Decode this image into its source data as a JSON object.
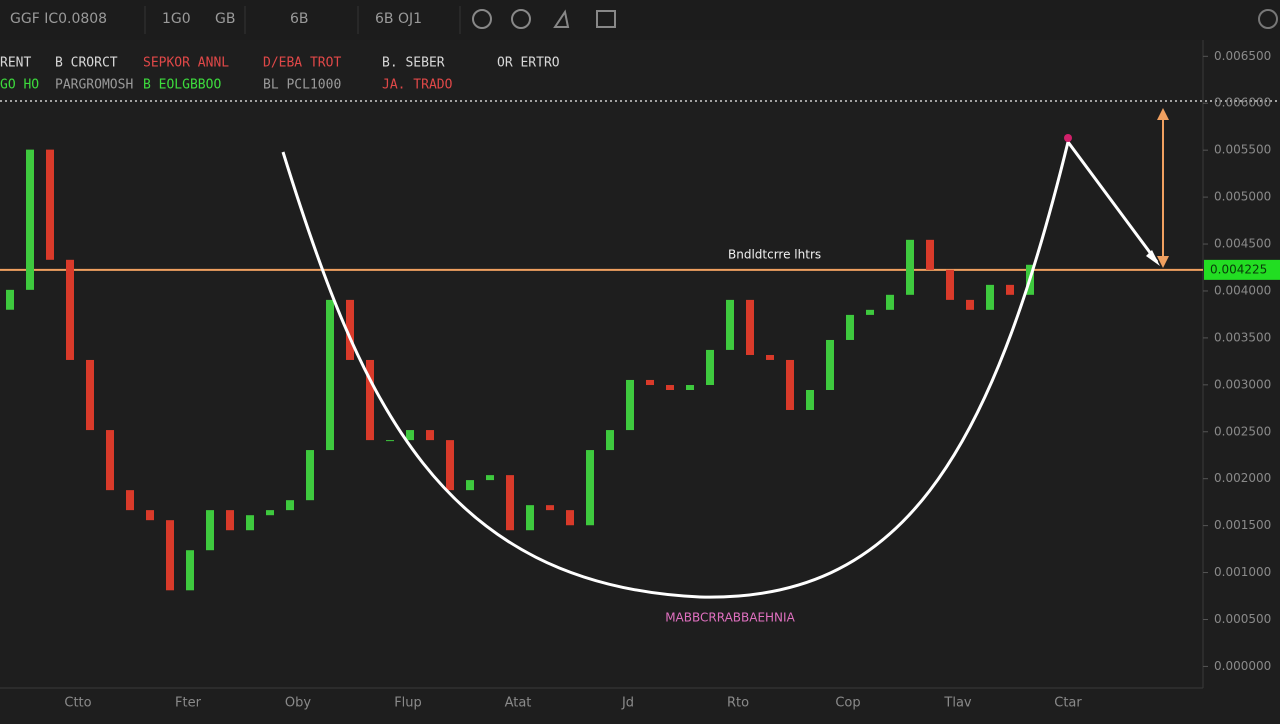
{
  "chart_data": {
    "type": "candlestick",
    "toolbar": [
      "GGF IC0.0808",
      "1G0",
      "GB",
      "6B",
      "6B OJ1"
    ],
    "header": [
      {
        "label": "RENT",
        "value": "GO HO",
        "label_color": "#d8d8d8",
        "value_color": "#3ddc3d"
      },
      {
        "label": "B CRORCT",
        "value": "PARGROMOSH",
        "label_color": "#d8d8d8",
        "value_color": "#9a9a9a"
      },
      {
        "label": "SEPKOR ANNL",
        "value": "B EOLGBBOO",
        "label_color": "#e04848",
        "value_color": "#3ddc3d"
      },
      {
        "label": "D/EBA TROT",
        "value": "BL PCL1000",
        "label_color": "#e04848",
        "value_color": "#9a9a9a"
      },
      {
        "label": "B. SEBER",
        "value": "JA. TRADO",
        "label_color": "#d8d8d8",
        "value_color": "#e04848"
      },
      {
        "label": "OR ERTRO",
        "value": null,
        "label_color": "#d8d8d8",
        "value_color": "#e04848"
      }
    ],
    "x_labels": [
      "Ctto",
      "Fter",
      "Oby",
      "Flup",
      "Atat",
      "Jd",
      "Rto",
      "Cop",
      "Tlav",
      "Ctar"
    ],
    "open": [
      0.0038,
      0.004012,
      0.005506,
      0.004332,
      0.003265,
      0.002518,
      0.001878,
      0.001665,
      0.001558,
      0.000811,
      0.001238,
      0.001665,
      0.001451,
      0.001611,
      0.001665,
      0.001771,
      0.002305,
      0.003905,
      0.003265,
      0.002411,
      0.002411,
      0.002518,
      0.002411,
      0.001878,
      0.001985,
      0.002038,
      0.001451,
      0.001718,
      0.001665,
      0.001504,
      0.002305,
      0.002518,
      0.003052,
      0.002998,
      0.002945,
      0.002998,
      0.003372,
      0.003905,
      0.003318,
      0.003265,
      0.002732,
      0.002945,
      0.003478,
      0.003745,
      0.003799,
      0.003959,
      0.004545,
      0.004225,
      0.003905,
      0.003799,
      0.004065,
      0.003959
    ],
    "close": [
      0.004012,
      0.005506,
      0.004332,
      0.003265,
      0.002518,
      0.001878,
      0.001665,
      0.001558,
      0.000811,
      0.001238,
      0.001665,
      0.001451,
      0.001611,
      0.001665,
      0.001771,
      0.002305,
      0.003905,
      0.003265,
      0.002411,
      0.002411,
      0.002518,
      0.002411,
      0.001878,
      0.001985,
      0.002038,
      0.001451,
      0.001718,
      0.001665,
      0.001504,
      0.002305,
      0.002518,
      0.003052,
      0.002998,
      0.002945,
      0.002998,
      0.003372,
      0.003905,
      0.003318,
      0.003265,
      0.002732,
      0.002945,
      0.003478,
      0.003745,
      0.003799,
      0.003959,
      0.004545,
      0.004225,
      0.003905,
      0.003799,
      0.004065,
      0.003959,
      0.004279
    ],
    "up_color": "#3ec93e",
    "down_color": "#d93a2a",
    "ylim": [
      -0.00023,
      0.0071
    ],
    "yticks": [
      {
        "value": 0.0065,
        "label": "0.006500"
      },
      {
        "value": 0.006,
        "label": "0.006000"
      },
      {
        "value": 0.0055,
        "label": "0.005500"
      },
      {
        "value": 0.005,
        "label": "0.005000"
      },
      {
        "value": 0.0045,
        "label": "0.004500"
      },
      {
        "value": 0.004,
        "label": "0.004000"
      },
      {
        "value": 0.0035,
        "label": "0.003500"
      },
      {
        "value": 0.003,
        "label": "0.003000"
      },
      {
        "value": 0.0025,
        "label": "0.002500"
      },
      {
        "value": 0.002,
        "label": "0.002000"
      },
      {
        "value": 0.0015,
        "label": "0.001500"
      },
      {
        "value": 0.001,
        "label": "0.001000"
      },
      {
        "value": 0.0005,
        "label": "0.000500"
      },
      {
        "value": 0,
        "label": "0.000000"
      }
    ],
    "resistance": {
      "value": 0.004225,
      "label": "Bndldtcrre  lhtrs",
      "color": "#f0a060"
    },
    "target": {
      "value": 0.006024
    },
    "price_badge": {
      "value": 0.004225,
      "label": "0.004225"
    },
    "pattern_label": "MABBCRRABBAEHNIA"
  }
}
